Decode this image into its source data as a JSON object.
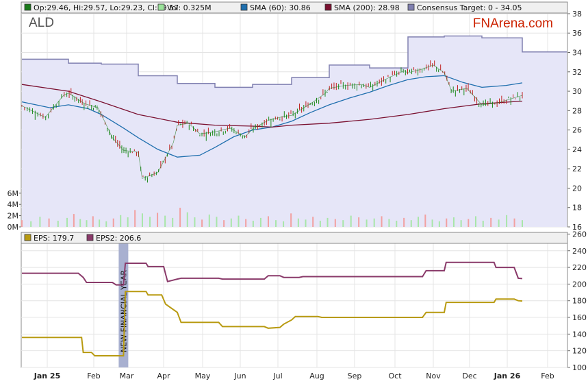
{
  "chart_data": [
    {
      "type": "line",
      "panel": "price",
      "ticker": "ALD",
      "watermark": "FNArena.com",
      "legend": [
        {
          "label": "Op:29.46, Hi:29.57, Lo:29.23, Cl:29.57",
          "color": "#1a7a1a"
        },
        {
          "label": "Vol: 0.325M",
          "color": "#9be39b"
        },
        {
          "label": "SMA (60): 30.86",
          "color": "#1f6fae"
        },
        {
          "label": "SMA (200): 28.98",
          "color": "#7a1030"
        },
        {
          "label": "Consensus Target: 0 - 34.05",
          "color": "#8080b0"
        }
      ],
      "x_labels": [
        "Jan 25",
        "Feb",
        "Mar",
        "Apr",
        "May",
        "Jun",
        "Jul",
        "Aug",
        "Sep",
        "Oct",
        "Nov",
        "Dec",
        "Jan 26",
        "Feb"
      ],
      "x_label_bold": [
        "Jan 25",
        "Jan 26"
      ],
      "y_ticks": [
        16,
        18,
        20,
        22,
        24,
        26,
        28,
        30,
        32,
        34,
        36,
        38
      ],
      "ylim": [
        16,
        39.2
      ],
      "volume_ticks": [
        "0M",
        "2M",
        "4M",
        "6M"
      ],
      "volume_max": 7.8,
      "series": [
        {
          "name": "Consensus Target",
          "color": "#8080b0",
          "points": [
            [
              0,
              33.3
            ],
            [
              1,
              32.9
            ],
            [
              2,
              32.8
            ],
            [
              3,
              31.6
            ],
            [
              4,
              30.8
            ],
            [
              5,
              30.4
            ],
            [
              6,
              30.7
            ],
            [
              7,
              31.4
            ],
            [
              8,
              32.7
            ],
            [
              9,
              32.4
            ],
            [
              10,
              35.6
            ],
            [
              11,
              35.7
            ],
            [
              12,
              35.5
            ],
            [
              13,
              34.05
            ]
          ]
        },
        {
          "name": "Close",
          "color": "#1a7a1a",
          "points": [
            [
              0,
              28.5
            ],
            [
              0.5,
              27.3
            ],
            [
              0.9,
              29.6
            ],
            [
              1,
              29.8
            ],
            [
              1.5,
              28.7
            ],
            [
              1.9,
              28.3
            ],
            [
              2,
              27.6
            ],
            [
              2.3,
              25.2
            ],
            [
              2.6,
              23.9
            ],
            [
              3,
              23.7
            ],
            [
              3.1,
              21.0
            ],
            [
              3.5,
              21.6
            ],
            [
              3.9,
              24.7
            ],
            [
              4,
              26.5
            ],
            [
              4.3,
              26.7
            ],
            [
              4.6,
              25.6
            ],
            [
              5,
              25.8
            ],
            [
              5.4,
              26.2
            ],
            [
              5.8,
              25.3
            ],
            [
              6,
              26.1
            ],
            [
              6.4,
              27.0
            ],
            [
              6.8,
              27.4
            ],
            [
              7,
              27.5
            ],
            [
              7.5,
              28.7
            ],
            [
              7.9,
              29.8
            ],
            [
              8,
              30.3
            ],
            [
              8.4,
              30.6
            ],
            [
              8.8,
              30.7
            ],
            [
              9,
              30.4
            ],
            [
              9.5,
              31.4
            ],
            [
              9.9,
              32.1
            ],
            [
              10,
              31.9
            ],
            [
              10.4,
              32.3
            ],
            [
              10.7,
              32.7
            ],
            [
              11,
              31.9
            ],
            [
              11.2,
              30.0
            ],
            [
              11.6,
              30.3
            ],
            [
              12,
              28.6
            ],
            [
              12.4,
              28.8
            ],
            [
              13,
              29.57
            ]
          ]
        },
        {
          "name": "SMA (60)",
          "color": "#1f6fae",
          "points": [
            [
              0,
              28.9
            ],
            [
              0.6,
              28.3
            ],
            [
              1,
              28.6
            ],
            [
              1.6,
              28.2
            ],
            [
              2,
              27.6
            ],
            [
              2.6,
              26.2
            ],
            [
              3,
              25.2
            ],
            [
              3.5,
              24.0
            ],
            [
              4,
              23.2
            ],
            [
              4.6,
              23.4
            ],
            [
              5,
              24.2
            ],
            [
              5.5,
              25.3
            ],
            [
              6,
              26.0
            ],
            [
              6.5,
              26.3
            ],
            [
              7,
              26.9
            ],
            [
              7.5,
              27.8
            ],
            [
              8,
              28.6
            ],
            [
              8.5,
              29.3
            ],
            [
              9,
              29.9
            ],
            [
              9.5,
              30.6
            ],
            [
              10,
              31.2
            ],
            [
              10.5,
              31.5
            ],
            [
              11,
              31.6
            ],
            [
              11.5,
              30.9
            ],
            [
              12,
              30.4
            ],
            [
              12.6,
              30.6
            ],
            [
              13,
              30.86
            ]
          ]
        },
        {
          "name": "SMA (200)",
          "color": "#7a1030",
          "points": [
            [
              0,
              30.7
            ],
            [
              1,
              30.0
            ],
            [
              2,
              28.9
            ],
            [
              3,
              27.6
            ],
            [
              4,
              26.8
            ],
            [
              5,
              26.5
            ],
            [
              6,
              26.4
            ],
            [
              6.5,
              26.3
            ],
            [
              7,
              26.5
            ],
            [
              8,
              26.7
            ],
            [
              9,
              27.1
            ],
            [
              10,
              27.6
            ],
            [
              11,
              28.2
            ],
            [
              12,
              28.7
            ],
            [
              13,
              28.98
            ]
          ]
        }
      ],
      "volume": [
        1.2,
        1.0,
        1.8,
        1.5,
        1.1,
        1.6,
        2.3,
        1.4,
        1.2,
        1.9,
        1.3,
        1.0,
        1.5,
        2.1,
        1.7,
        3.0,
        2.4,
        1.8,
        2.5,
        2.0,
        1.6,
        3.4,
        2.6,
        1.7,
        1.3,
        2.2,
        1.8,
        1.2,
        1.5,
        2.0,
        1.4,
        1.1,
        1.6,
        1.9,
        1.2,
        1.0,
        2.4,
        1.5,
        1.3,
        1.8,
        1.1,
        1.6,
        1.4,
        1.2,
        2.0,
        1.7,
        1.3,
        1.5,
        1.9,
        1.4,
        1.1,
        1.6,
        1.2,
        1.8,
        2.2,
        1.3,
        1.0,
        1.5,
        1.7,
        1.2,
        1.4,
        1.9,
        1.1,
        1.6,
        1.3,
        2.1,
        1.5,
        1.2
      ]
    },
    {
      "type": "line",
      "panel": "eps",
      "legend": [
        {
          "label": "EPS: 179.7",
          "color": "#b89a10"
        },
        {
          "label": "EPS2: 206.6",
          "color": "#8a3a6a"
        }
      ],
      "annotation": "NEW FINANCIAL YEAR",
      "annotation_x": 2.6,
      "y_ticks": [
        100,
        120,
        140,
        160,
        180,
        200,
        220,
        240,
        260
      ],
      "ylim": [
        100,
        262
      ],
      "series": [
        {
          "name": "EPS",
          "color": "#b89a10",
          "points": [
            [
              0,
              136
            ],
            [
              1.4,
              136
            ],
            [
              1.45,
              118
            ],
            [
              1.7,
              118
            ],
            [
              1.8,
              114
            ],
            [
              2.6,
              114
            ],
            [
              2.65,
              191
            ],
            [
              3.2,
              191
            ],
            [
              3.25,
              187
            ],
            [
              3.6,
              187
            ],
            [
              3.7,
              176
            ],
            [
              4,
              166
            ],
            [
              4.1,
              154
            ],
            [
              5.1,
              154
            ],
            [
              5.2,
              149
            ],
            [
              6.3,
              149
            ],
            [
              6.4,
              147
            ],
            [
              6.7,
              148
            ],
            [
              6.8,
              152
            ],
            [
              7,
              157
            ],
            [
              7.1,
              161
            ],
            [
              7.7,
              161
            ],
            [
              7.8,
              160
            ],
            [
              10.4,
              160
            ],
            [
              10.5,
              166
            ],
            [
              11,
              166
            ],
            [
              11.05,
              178
            ],
            [
              12.3,
              178
            ],
            [
              12.35,
              182
            ],
            [
              12.8,
              182
            ],
            [
              12.9,
              180
            ],
            [
              13,
              179.7
            ]
          ]
        },
        {
          "name": "EPS2",
          "color": "#8a3a6a",
          "points": [
            [
              0,
              213
            ],
            [
              1.3,
              213
            ],
            [
              1.45,
              208
            ],
            [
              1.55,
              202
            ],
            [
              2.3,
              202
            ],
            [
              2.4,
              199
            ],
            [
              2.6,
              199
            ],
            [
              2.65,
              225
            ],
            [
              3.2,
              225
            ],
            [
              3.25,
              221
            ],
            [
              3.65,
              221
            ],
            [
              3.7,
              212
            ],
            [
              3.75,
              203
            ],
            [
              4,
              206
            ],
            [
              4.1,
              207
            ],
            [
              5.1,
              207
            ],
            [
              5.2,
              206
            ],
            [
              6.3,
              206
            ],
            [
              6.4,
              210
            ],
            [
              6.7,
              210
            ],
            [
              6.8,
              208
            ],
            [
              7.2,
              208
            ],
            [
              7.3,
              209
            ],
            [
              10.4,
              209
            ],
            [
              10.5,
              216
            ],
            [
              11,
              216
            ],
            [
              11.05,
              226
            ],
            [
              12.3,
              226
            ],
            [
              12.35,
              220
            ],
            [
              12.8,
              220
            ],
            [
              12.9,
              207
            ],
            [
              13,
              206.6
            ]
          ]
        }
      ]
    }
  ]
}
